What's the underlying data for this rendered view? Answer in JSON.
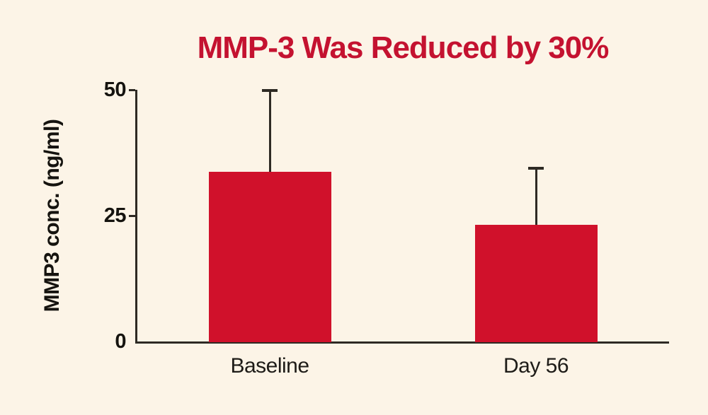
{
  "colors": {
    "background": "#FCF4E7",
    "bar": "#D0112B",
    "title": "#C41230",
    "axis": "#2E2A24",
    "tick_text": "#15130F",
    "category_text": "#1E1C18"
  },
  "chart_data": {
    "type": "bar",
    "title": "MMP-3 Was Reduced by 30%",
    "xlabel": "",
    "ylabel": "MMP3 conc. (ng/ml)",
    "categories": [
      "Baseline",
      "Day 56"
    ],
    "values": [
      33.7,
      23.2
    ],
    "errors_upper": [
      16.2,
      11.2
    ],
    "ylim": [
      0,
      50
    ],
    "yticks": [
      0,
      25,
      50
    ],
    "ytick_labels": [
      "0",
      "25",
      "50"
    ],
    "grid": false,
    "legend_position": "none"
  }
}
